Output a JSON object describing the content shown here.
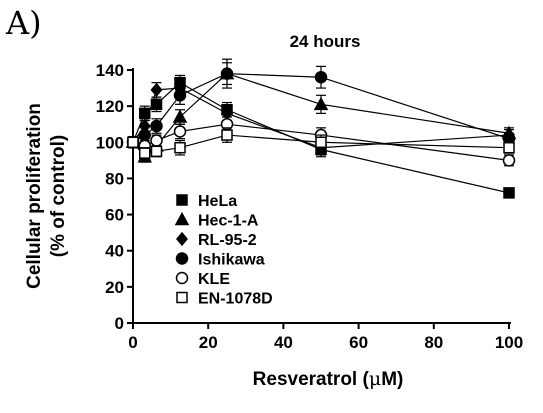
{
  "panel_label": "A)",
  "chart_data": {
    "type": "line",
    "title": "24 hours",
    "xlabel_main": "Resveratrol (",
    "xlabel_unit": "μ",
    "xlabel_end": "M)",
    "ylabel_line1": "Cellular proliferation",
    "ylabel_line2": "(% of control)",
    "xlim": [
      0,
      100
    ],
    "ylim": [
      0,
      140
    ],
    "xticks": [
      0,
      20,
      40,
      60,
      80,
      100
    ],
    "yticks": [
      0,
      20,
      40,
      60,
      80,
      100,
      120,
      140
    ],
    "grid": false,
    "legend_position": "bottom-left",
    "series": [
      {
        "name": "HeLa",
        "marker": "square-filled",
        "x": [
          0,
          3.125,
          6.25,
          12.5,
          25,
          50,
          100
        ],
        "y": [
          100,
          116,
          121,
          133,
          118,
          96,
          72
        ],
        "err": [
          3,
          4,
          4,
          4,
          4,
          4,
          2
        ]
      },
      {
        "name": "Hec-1-A",
        "marker": "triangle-filled",
        "x": [
          0,
          3.125,
          6.25,
          12.5,
          25,
          50,
          100
        ],
        "y": [
          100,
          92,
          98,
          114,
          138,
          121,
          105
        ],
        "err": [
          3,
          3,
          3,
          4,
          6,
          5,
          3
        ]
      },
      {
        "name": "RL-95-2",
        "marker": "diamond-filled",
        "x": [
          0,
          3.125,
          6.25,
          12.5,
          25,
          50,
          100
        ],
        "y": [
          100,
          109,
          129,
          130,
          116,
          97,
          104
        ],
        "err": [
          3,
          4,
          4,
          4,
          4,
          4,
          3
        ]
      },
      {
        "name": "Ishikawa",
        "marker": "circle-filled",
        "x": [
          0,
          3.125,
          6.25,
          12.5,
          25,
          50,
          100
        ],
        "y": [
          100,
          104,
          109,
          126,
          138,
          136,
          102
        ],
        "err": [
          3,
          4,
          4,
          5,
          8,
          6,
          3
        ]
      },
      {
        "name": "KLE",
        "marker": "circle-open",
        "x": [
          0,
          3.125,
          6.25,
          12.5,
          25,
          50,
          100
        ],
        "y": [
          100,
          98,
          101,
          106,
          110,
          104,
          90
        ],
        "err": [
          3,
          3,
          3,
          4,
          4,
          4,
          3
        ]
      },
      {
        "name": "EN-1078D",
        "marker": "square-open",
        "x": [
          0,
          3.125,
          6.25,
          12.5,
          25,
          50,
          100
        ],
        "y": [
          100,
          94,
          95,
          97,
          104,
          100,
          97
        ],
        "err": [
          3,
          3,
          3,
          4,
          4,
          4,
          3
        ]
      }
    ]
  }
}
